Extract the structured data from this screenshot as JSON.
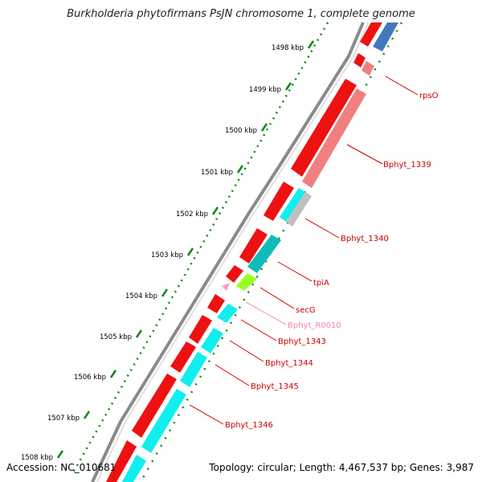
{
  "title": "Burkholderia phytofirmans PsJN chromosome 1, complete genome",
  "footer": {
    "accession": "Accession: NC_010681",
    "summary": "Topology: circular; Length: 4,467,537 bp; Genes: 3,987"
  },
  "colors": {
    "backbone": "#777777",
    "cds": "#ee1111",
    "rrna_like": "#f08080",
    "cyan": "#11eeee",
    "teal": "#11bbbb",
    "gray": "#c0c0c0",
    "green_feature": "#99ff22",
    "pink_feature": "#ff99cc",
    "blue_feature": "#4477bb",
    "tick_green": "#118811",
    "label_red": "#cc0000",
    "label_pink": "#ee88aa"
  },
  "scale_ticks": [
    "1498 kbp",
    "1499 kbp",
    "1500 kbp",
    "1501 kbp",
    "1502 kbp",
    "1503 kbp",
    "1504 kbp",
    "1505 kbp",
    "1506 kbp",
    "1507 kbp",
    "1508 kbp"
  ],
  "gene_labels": [
    {
      "text": "rpsO",
      "color": "red"
    },
    {
      "text": "Bphyt_1339",
      "color": "red"
    },
    {
      "text": "Bphyt_1340",
      "color": "red"
    },
    {
      "text": "tpiA",
      "color": "red"
    },
    {
      "text": "secG",
      "color": "red"
    },
    {
      "text": "Bphyt_R0010",
      "color": "pink"
    },
    {
      "text": "Bphyt_1343",
      "color": "red"
    },
    {
      "text": "Bphyt_1344",
      "color": "red"
    },
    {
      "text": "Bphyt_1345",
      "color": "red"
    },
    {
      "text": "Bphyt_1346",
      "color": "red"
    }
  ]
}
